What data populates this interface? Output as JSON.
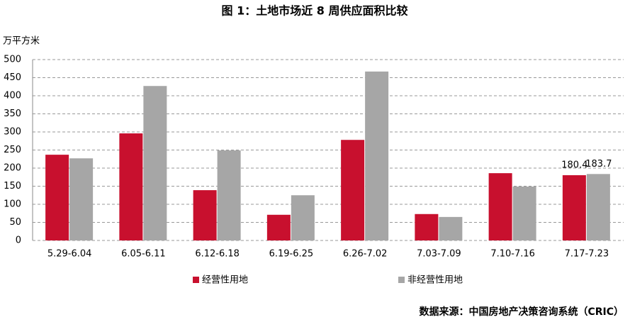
{
  "chart_data": {
    "type": "bar",
    "title": "图 1：土地市场近 8 周供应面积比较",
    "y_label": "万平方米",
    "source": "数据来源：中国房地产决策咨询系统（CRIC）",
    "categories": [
      "5.29-6.04",
      "6.05-6.11",
      "6.12-6.18",
      "6.19-6.25",
      "6.26-7.02",
      "7.03-7.09",
      "7.10-7.16",
      "7.17-7.23"
    ],
    "series": [
      {
        "name": "经营性用地",
        "color": "#c8102e",
        "values": [
          237,
          296,
          139,
          71,
          278,
          73,
          186,
          180.4
        ],
        "value_labels": [
          null,
          null,
          null,
          null,
          null,
          null,
          null,
          "180.4"
        ]
      },
      {
        "name": "非经营性用地",
        "color": "#a6a6a6",
        "values": [
          227,
          427,
          249,
          125,
          467,
          65,
          149,
          183.7
        ],
        "value_labels": [
          null,
          null,
          null,
          null,
          null,
          null,
          null,
          "183.7"
        ]
      }
    ],
    "ylim": [
      0,
      500
    ],
    "yticks": [
      0,
      50,
      100,
      150,
      200,
      250,
      300,
      350,
      400,
      450,
      500
    ],
    "grid": true,
    "legend": "bottom"
  }
}
